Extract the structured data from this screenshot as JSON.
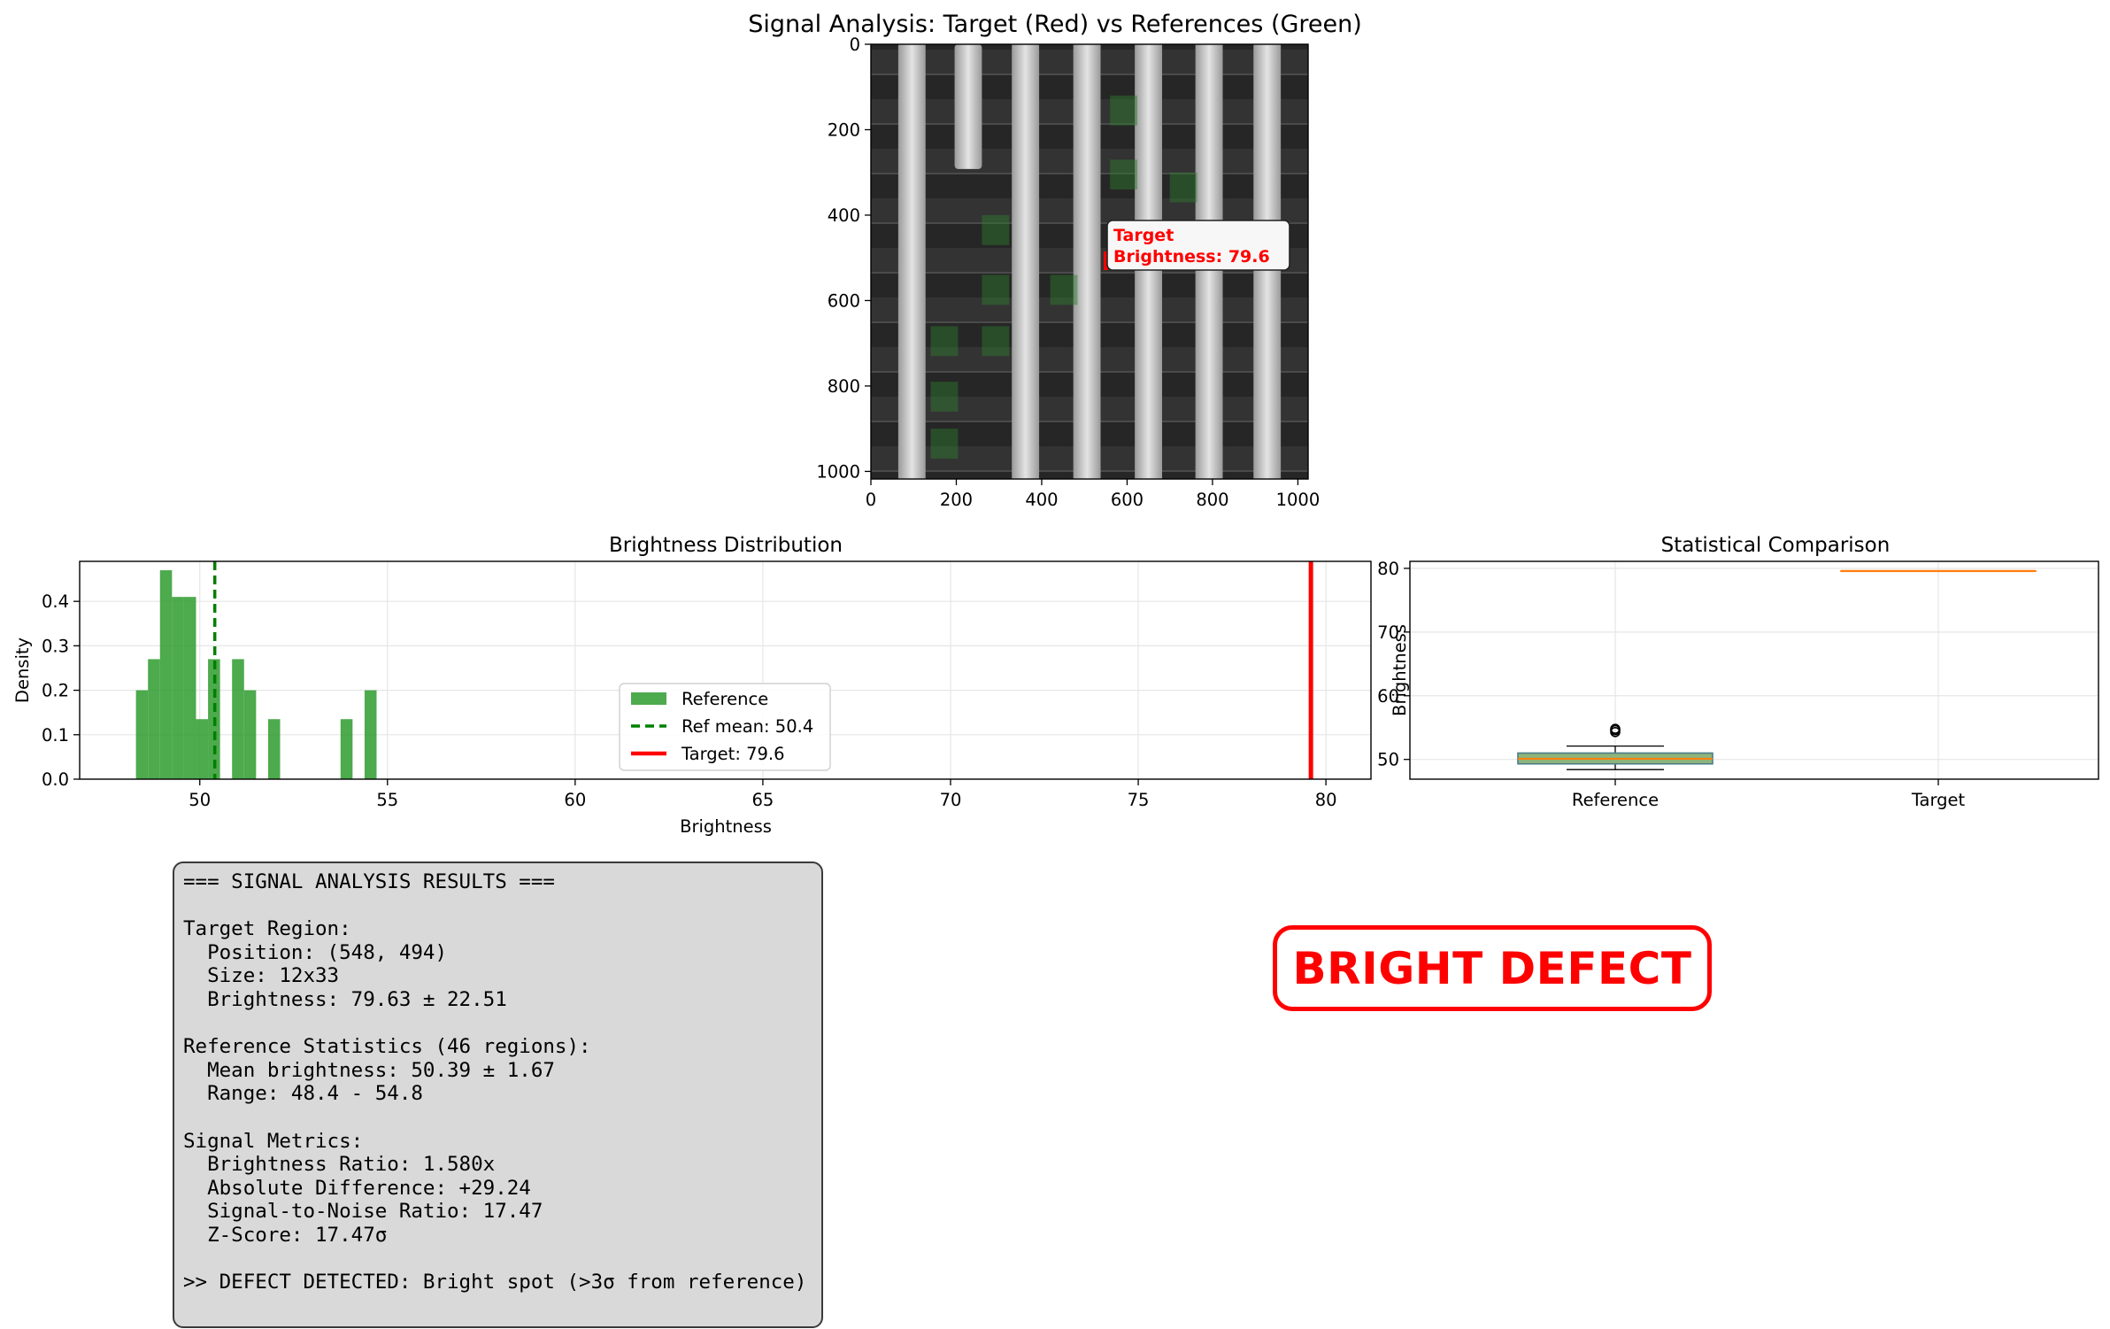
{
  "figure": {
    "suptitle": "Signal Analysis: Target (Red) vs References (Green)"
  },
  "image_panel": {
    "x_ticks": [
      "0",
      "200",
      "400",
      "600",
      "800",
      "1000"
    ],
    "y_ticks": [
      "0",
      "200",
      "400",
      "600",
      "800",
      "1000"
    ],
    "annotation_line1": "Target",
    "annotation_line2": "Brightness: 79.6",
    "annotation_color": "#ff0000",
    "reference_color": "#2e7d2e"
  },
  "chart_data": [
    {
      "type": "image",
      "title": "Signal Analysis: Target (Red) vs References (Green)",
      "xlim": [
        0,
        1024
      ],
      "ylim": [
        1024,
        0
      ],
      "target_region": {
        "x": 548,
        "y": 494,
        "w": 12,
        "h": 33
      },
      "annotation": "Target\nBrightness: 79.6"
    },
    {
      "type": "bar",
      "title": "Brightness Distribution",
      "xlabel": "Brightness",
      "ylabel": "Density",
      "xlim": [
        46.8,
        81.2
      ],
      "ylim": [
        0,
        0.49
      ],
      "x_ticks": [
        50,
        55,
        60,
        65,
        70,
        75,
        80
      ],
      "y_ticks": [
        0.0,
        0.1,
        0.2,
        0.3,
        0.4
      ],
      "grid": true,
      "bins": [
        {
          "x": 48.3,
          "w": 0.32,
          "v": 0.2
        },
        {
          "x": 48.62,
          "w": 0.32,
          "v": 0.27
        },
        {
          "x": 48.94,
          "w": 0.32,
          "v": 0.47
        },
        {
          "x": 49.26,
          "w": 0.32,
          "v": 0.41
        },
        {
          "x": 49.58,
          "w": 0.32,
          "v": 0.41
        },
        {
          "x": 49.9,
          "w": 0.32,
          "v": 0.135
        },
        {
          "x": 50.22,
          "w": 0.32,
          "v": 0.27
        },
        {
          "x": 50.86,
          "w": 0.32,
          "v": 0.27
        },
        {
          "x": 51.18,
          "w": 0.32,
          "v": 0.2
        },
        {
          "x": 51.82,
          "w": 0.32,
          "v": 0.135
        },
        {
          "x": 53.75,
          "w": 0.32,
          "v": 0.135
        },
        {
          "x": 54.39,
          "w": 0.32,
          "v": 0.2
        }
      ],
      "ref_mean": 50.4,
      "target": 79.6,
      "legend": [
        {
          "label": "Reference",
          "color": "#2e9b2e",
          "style": "patch"
        },
        {
          "label": "Ref mean: 50.4",
          "color": "#008000",
          "style": "dashed"
        },
        {
          "label": "Target: 79.6",
          "color": "#ff0000",
          "style": "solid"
        }
      ],
      "legend_position": "lower-center"
    },
    {
      "type": "box",
      "title": "Statistical Comparison",
      "ylabel": "Brightness",
      "categories": [
        "Reference",
        "Target"
      ],
      "ylim": [
        46.9,
        81.1
      ],
      "y_ticks": [
        50,
        60,
        70,
        80
      ],
      "grid": true,
      "boxes": [
        {
          "name": "Reference",
          "q1": 49.3,
          "median": 50.1,
          "q3": 51.0,
          "whisker_low": 48.4,
          "whisker_high": 52.1,
          "fliers": [
            54.3,
            54.6,
            54.8
          ],
          "face": "#8fb37a",
          "edge": "#4a7d8c"
        },
        {
          "name": "Target",
          "q1": 79.6,
          "median": 79.6,
          "q3": 79.6,
          "whisker_low": 79.6,
          "whisker_high": 79.6,
          "fliers": [],
          "face": "#f4b183",
          "edge": "#ff7f0e"
        }
      ]
    }
  ],
  "results": {
    "text": "=== SIGNAL ANALYSIS RESULTS ===\n\nTarget Region:\n  Position: (548, 494)\n  Size: 12x33\n  Brightness: 79.63 ± 22.51\n\nReference Statistics (46 regions):\n  Mean brightness: 50.39 ± 1.67\n  Range: 48.4 - 54.8\n\nSignal Metrics:\n  Brightness Ratio: 1.580x\n  Absolute Difference: +29.24\n  Signal-to-Noise Ratio: 17.47\n  Z-Score: 17.47σ\n\n>> DEFECT DETECTED: Bright spot (>3σ from reference)"
  },
  "verdict": {
    "label": "BRIGHT DEFECT",
    "color": "#ff0000"
  }
}
